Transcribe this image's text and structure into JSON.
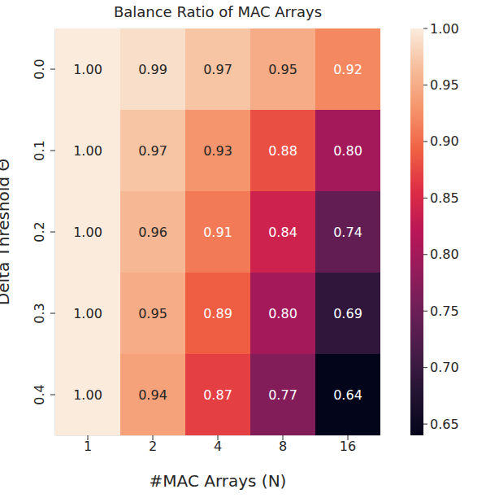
{
  "chart_data": {
    "type": "heatmap",
    "title": "Balance Ratio of MAC Arrays",
    "x_label": "#MAC Arrays (N)",
    "y_label": "Delta Threshold Θ",
    "x_categories": [
      "1",
      "2",
      "4",
      "8",
      "16"
    ],
    "y_categories": [
      "0.0",
      "0.1",
      "0.2",
      "0.3",
      "0.4"
    ],
    "cells": [
      [
        1.0,
        0.99,
        0.97,
        0.95,
        0.92
      ],
      [
        1.0,
        0.97,
        0.93,
        0.88,
        0.8
      ],
      [
        1.0,
        0.96,
        0.91,
        0.84,
        0.74
      ],
      [
        1.0,
        0.95,
        0.89,
        0.8,
        0.69
      ],
      [
        1.0,
        0.94,
        0.87,
        0.77,
        0.64
      ]
    ],
    "value_labels": [
      [
        "1.00",
        "0.99",
        "0.97",
        "0.95",
        "0.92"
      ],
      [
        "1.00",
        "0.97",
        "0.93",
        "0.88",
        "0.80"
      ],
      [
        "1.00",
        "0.96",
        "0.91",
        "0.84",
        "0.74"
      ],
      [
        "1.00",
        "0.95",
        "0.89",
        "0.80",
        "0.69"
      ],
      [
        "1.00",
        "0.94",
        "0.87",
        "0.77",
        "0.64"
      ]
    ],
    "data_labels": true,
    "colorbar": {
      "range": [
        0.64,
        1.0
      ],
      "ticks": [
        0.65,
        {
          "value": 0.7,
          "label": "0.70"
        },
        0.75,
        {
          "value": 0.8,
          "label": "0.80"
        },
        0.85,
        {
          "value": 0.9,
          "label": "0.90"
        },
        0.95,
        {
          "value": 1.0,
          "label": "1.00"
        }
      ]
    }
  }
}
